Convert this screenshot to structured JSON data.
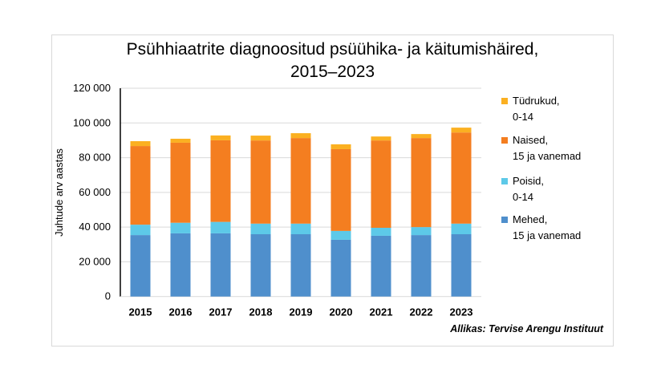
{
  "chart_data": {
    "type": "bar",
    "stacked": true,
    "title": "Psühhiaatrite diagnoositud psüühika- ja käitumishäired,\n2015–2023",
    "ylabel": "Juhtude arv aastas",
    "xlabel": "",
    "ylim": [
      0,
      120000
    ],
    "yticks": [
      0,
      20000,
      40000,
      60000,
      80000,
      100000,
      120000
    ],
    "ytick_labels": [
      "0",
      "20 000",
      "40 000",
      "60 000",
      "80 000",
      "100 000",
      "120 000"
    ],
    "grid": true,
    "legend_position": "right",
    "categories": [
      "2015",
      "2016",
      "2017",
      "2018",
      "2019",
      "2020",
      "2021",
      "2022",
      "2023"
    ],
    "series": [
      {
        "name": "Mehed,\n15 ja vanemad",
        "color": "#4F8FCC",
        "values": [
          35400,
          36400,
          36400,
          35900,
          35900,
          32700,
          35000,
          35400,
          35900
        ]
      },
      {
        "name": "Poisid,\n0-14",
        "color": "#5DC9E8",
        "values": [
          6000,
          6100,
          6600,
          6100,
          6100,
          5100,
          4600,
          4600,
          6100
        ]
      },
      {
        "name": "Naised,\n15 ja vanemad",
        "color": "#F47E20",
        "values": [
          45300,
          46100,
          47000,
          47900,
          49300,
          47100,
          50300,
          51300,
          52500
        ]
      },
      {
        "name": "Tüdrukud,\n0-14",
        "color": "#FBB021",
        "values": [
          2800,
          2300,
          2800,
          2800,
          2800,
          2800,
          2300,
          2300,
          2800
        ]
      }
    ],
    "source": "Allikas: Tervise Arengu Instituut"
  }
}
